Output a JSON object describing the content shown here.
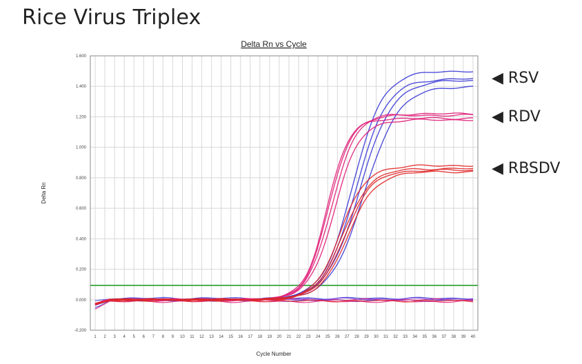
{
  "page": {
    "title": "Rice Virus Triplex"
  },
  "chart_data": {
    "type": "line",
    "title": "Delta Rn vs Cycle",
    "xlabel": "Cycle Number",
    "ylabel": "Delta Rn",
    "xlim": [
      1,
      40
    ],
    "ylim": [
      -0.2,
      1.6
    ],
    "x_ticks": [
      "1",
      "2",
      "3",
      "4",
      "5",
      "6",
      "7",
      "8",
      "9",
      "10",
      "11",
      "12",
      "13",
      "14",
      "15",
      "16",
      "17",
      "18",
      "19",
      "20",
      "21",
      "22",
      "23",
      "24",
      "25",
      "26",
      "27",
      "28",
      "29",
      "30",
      "31",
      "32",
      "33",
      "34",
      "35",
      "36",
      "37",
      "38",
      "39",
      "40"
    ],
    "y_ticks": [
      "-0.200",
      "0.000",
      "0.200",
      "0.400",
      "0.600",
      "0.800",
      "1.000",
      "1.200",
      "1.400",
      "1.600"
    ],
    "y_tick_values": [
      -0.2,
      0.0,
      0.2,
      0.4,
      0.6,
      0.8,
      1.0,
      1.2,
      1.4,
      1.6
    ],
    "grid": true,
    "threshold": {
      "value": 0.094,
      "color": "#4caf50"
    },
    "series": [
      {
        "name": "RSV",
        "color": "#3b3bd6",
        "curves": [
          {
            "plateau": 1.5,
            "midpoint": 27.6,
            "slope": 1.55
          },
          {
            "plateau": 1.45,
            "midpoint": 27.9,
            "slope": 1.6
          },
          {
            "plateau": 1.44,
            "midpoint": 28.3,
            "slope": 1.7
          },
          {
            "plateau": 1.4,
            "midpoint": 28.8,
            "slope": 1.75
          }
        ]
      },
      {
        "name": "RDV",
        "color": "#e0207a",
        "curves": [
          {
            "plateau": 1.19,
            "midpoint": 24.9,
            "slope": 1.15
          },
          {
            "plateau": 1.21,
            "midpoint": 25.1,
            "slope": 1.2
          },
          {
            "plateau": 1.22,
            "midpoint": 25.4,
            "slope": 1.25
          },
          {
            "plateau": 1.18,
            "midpoint": 25.7,
            "slope": 1.3
          }
        ]
      },
      {
        "name": "RBSDV",
        "color": "#e02828",
        "curves": [
          {
            "plateau": 0.88,
            "midpoint": 26.3,
            "slope": 1.35
          },
          {
            "plateau": 0.86,
            "midpoint": 26.6,
            "slope": 1.4
          },
          {
            "plateau": 0.85,
            "midpoint": 26.8,
            "slope": 1.4
          },
          {
            "plateau": 0.84,
            "midpoint": 27.1,
            "slope": 1.45
          }
        ]
      }
    ],
    "flat_lines": [
      {
        "color": "#3b3bd6",
        "offset": 0.01
      },
      {
        "color": "#3b3bd6",
        "offset": -0.005
      },
      {
        "color": "#e0207a",
        "offset": 0.0
      },
      {
        "color": "#e0207a",
        "offset": -0.012
      },
      {
        "color": "#e02828",
        "offset": -0.008
      },
      {
        "color": "#7a3bd6",
        "offset": 0.005
      }
    ],
    "legend_labels": [
      "◀ RSV",
      "◀ RDV",
      "◀ RBSDV"
    ]
  }
}
